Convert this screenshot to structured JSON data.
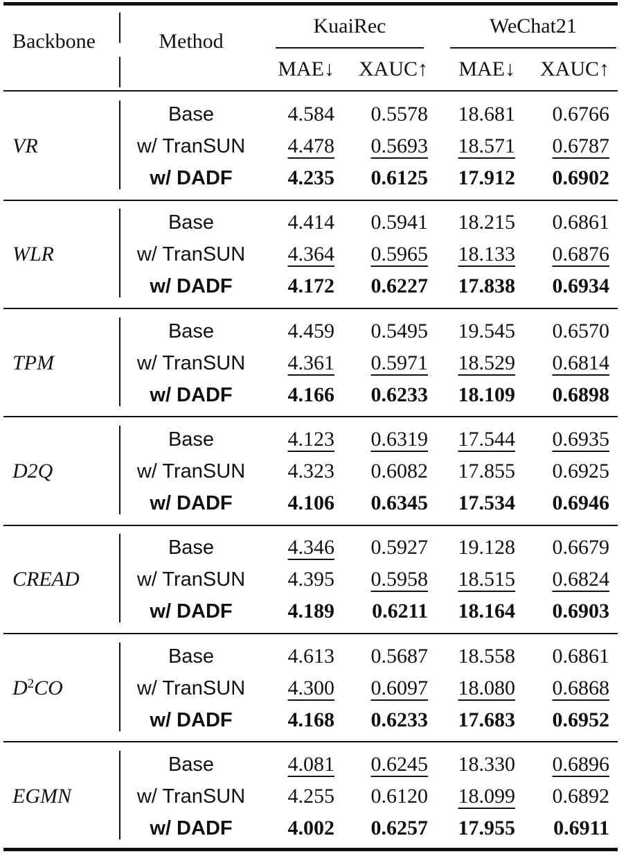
{
  "header": {
    "backbone": "Backbone",
    "method": "Method",
    "datasets": [
      "KuaiRec",
      "WeChat21"
    ],
    "metrics": [
      "MAE↓",
      "XAUC↑",
      "MAE↓",
      "XAUC↑"
    ]
  },
  "groups": [
    {
      "backbone": "VR",
      "rows": [
        {
          "method": "Base",
          "values": [
            "4.584",
            "0.5578",
            "18.681",
            "0.6766"
          ],
          "underline": [
            false,
            false,
            false,
            false
          ]
        },
        {
          "method": "w/ TranSUN",
          "values": [
            "4.478",
            "0.5693",
            "18.571",
            "0.6787"
          ],
          "underline": [
            true,
            true,
            true,
            true
          ]
        },
        {
          "method": "w/ DADF",
          "values": [
            "4.235",
            "0.6125",
            "17.912",
            "0.6902"
          ],
          "underline": [
            false,
            false,
            false,
            false
          ]
        }
      ]
    },
    {
      "backbone": "WLR",
      "rows": [
        {
          "method": "Base",
          "values": [
            "4.414",
            "0.5941",
            "18.215",
            "0.6861"
          ],
          "underline": [
            false,
            false,
            false,
            false
          ]
        },
        {
          "method": "w/ TranSUN",
          "values": [
            "4.364",
            "0.5965",
            "18.133",
            "0.6876"
          ],
          "underline": [
            true,
            true,
            true,
            true
          ]
        },
        {
          "method": "w/ DADF",
          "values": [
            "4.172",
            "0.6227",
            "17.838",
            "0.6934"
          ],
          "underline": [
            false,
            false,
            false,
            false
          ]
        }
      ]
    },
    {
      "backbone": "TPM",
      "rows": [
        {
          "method": "Base",
          "values": [
            "4.459",
            "0.5495",
            "19.545",
            "0.6570"
          ],
          "underline": [
            false,
            false,
            false,
            false
          ]
        },
        {
          "method": "w/ TranSUN",
          "values": [
            "4.361",
            "0.5971",
            "18.529",
            "0.6814"
          ],
          "underline": [
            true,
            true,
            true,
            true
          ]
        },
        {
          "method": "w/ DADF",
          "values": [
            "4.166",
            "0.6233",
            "18.109",
            "0.6898"
          ],
          "underline": [
            false,
            false,
            false,
            false
          ]
        }
      ]
    },
    {
      "backbone": "D2Q",
      "rows": [
        {
          "method": "Base",
          "values": [
            "4.123",
            "0.6319",
            "17.544",
            "0.6935"
          ],
          "underline": [
            true,
            true,
            true,
            true
          ]
        },
        {
          "method": "w/ TranSUN",
          "values": [
            "4.323",
            "0.6082",
            "17.855",
            "0.6925"
          ],
          "underline": [
            false,
            false,
            false,
            false
          ]
        },
        {
          "method": "w/ DADF",
          "values": [
            "4.106",
            "0.6345",
            "17.534",
            "0.6946"
          ],
          "underline": [
            false,
            false,
            false,
            false
          ]
        }
      ]
    },
    {
      "backbone": "CREAD",
      "rows": [
        {
          "method": "Base",
          "values": [
            "4.346",
            "0.5927",
            "19.128",
            "0.6679"
          ],
          "underline": [
            true,
            false,
            false,
            false
          ]
        },
        {
          "method": "w/ TranSUN",
          "values": [
            "4.395",
            "0.5958",
            "18.515",
            "0.6824"
          ],
          "underline": [
            false,
            true,
            true,
            true
          ]
        },
        {
          "method": "w/ DADF",
          "values": [
            "4.189",
            "0.6211",
            "18.164",
            "0.6903"
          ],
          "underline": [
            false,
            false,
            false,
            false
          ]
        }
      ]
    },
    {
      "backbone": {
        "text": "D",
        "sup": "2",
        "tail": "CO"
      },
      "rows": [
        {
          "method": "Base",
          "values": [
            "4.613",
            "0.5687",
            "18.558",
            "0.6861"
          ],
          "underline": [
            false,
            false,
            false,
            false
          ]
        },
        {
          "method": "w/ TranSUN",
          "values": [
            "4.300",
            "0.6097",
            "18.080",
            "0.6868"
          ],
          "underline": [
            true,
            true,
            true,
            true
          ]
        },
        {
          "method": "w/ DADF",
          "values": [
            "4.168",
            "0.6233",
            "17.683",
            "0.6952"
          ],
          "underline": [
            false,
            false,
            false,
            false
          ]
        }
      ]
    },
    {
      "backbone": "EGMN",
      "rows": [
        {
          "method": "Base",
          "values": [
            "4.081",
            "0.6245",
            "18.330",
            "0.6896"
          ],
          "underline": [
            true,
            true,
            false,
            true
          ]
        },
        {
          "method": "w/ TranSUN",
          "values": [
            "4.255",
            "0.6120",
            "18.099",
            "0.6892"
          ],
          "underline": [
            false,
            false,
            true,
            false
          ]
        },
        {
          "method": "w/ DADF",
          "values": [
            "4.002",
            "0.6257",
            "17.955",
            "0.6911"
          ],
          "underline": [
            false,
            false,
            false,
            false
          ]
        }
      ]
    }
  ]
}
